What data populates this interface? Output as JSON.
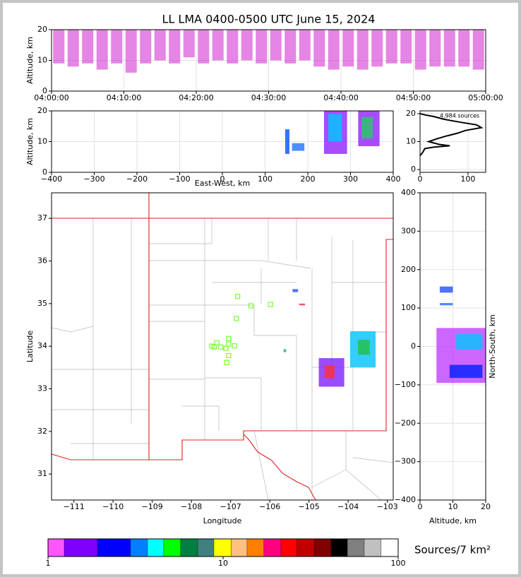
{
  "chart_data": [
    {
      "type": "range",
      "title": "LL LMA 0400-0500 UTC June 15, 2024",
      "y_label": "Altitude, km",
      "x": [
        "04:01:00",
        "04:03:00",
        "04:05:00",
        "04:07:00",
        "04:09:00",
        "04:11:00",
        "04:13:00",
        "04:15:00",
        "04:17:00",
        "04:19:00",
        "04:21:00",
        "04:23:00",
        "04:25:00",
        "04:27:00",
        "04:29:00",
        "04:31:00",
        "04:33:00",
        "04:35:00",
        "04:37:00",
        "04:39:00",
        "04:41:00",
        "04:43:00",
        "04:45:00",
        "04:47:00",
        "04:49:00",
        "04:51:00",
        "04:53:00",
        "04:55:00",
        "04:57:00",
        "04:59:00"
      ],
      "low": [
        9,
        8,
        9,
        7,
        9,
        6,
        9,
        10,
        9,
        11,
        9,
        10,
        9,
        10,
        9,
        10,
        9,
        10,
        8,
        7,
        8,
        7,
        8,
        9,
        9,
        7,
        8,
        8,
        8,
        7
      ],
      "high": [
        20,
        20,
        20,
        20,
        20,
        20,
        20,
        20,
        20,
        20,
        20,
        20,
        20,
        20,
        20,
        20,
        20,
        20,
        20,
        20,
        20,
        20,
        20,
        20,
        20,
        20,
        20,
        20,
        20,
        20
      ],
      "color": "#d020d0",
      "xlim": [
        "04:00:00",
        "05:00:00"
      ],
      "xticks": [
        "04:00:00",
        "04:10:00",
        "04:20:00",
        "04:30:00",
        "04:40:00",
        "04:50:00",
        "05:00:00"
      ],
      "ylim": [
        0,
        20
      ],
      "yticks": [
        0,
        10,
        20
      ],
      "grid": true
    },
    {
      "type": "blobs",
      "y_label": "Altitude, km",
      "x_label": "East-West, km",
      "blobs": [
        {
          "x": [
            147,
            157
          ],
          "y": [
            6,
            14
          ],
          "color": "#0050ff"
        },
        {
          "x": [
            163,
            192
          ],
          "y": [
            7,
            9.5
          ],
          "color": "#2070ff"
        },
        {
          "x": [
            238,
            292
          ],
          "y": [
            6,
            20
          ],
          "color": "#9020ff"
        },
        {
          "x": [
            248,
            280
          ],
          "y": [
            10,
            19
          ],
          "color": "#00c8ff"
        },
        {
          "x": [
            318,
            368
          ],
          "y": [
            8.5,
            20
          ],
          "color": "#9020ff"
        },
        {
          "x": [
            326,
            352
          ],
          "y": [
            11,
            18
          ],
          "color": "#20d060"
        }
      ],
      "xlim": [
        -400,
        400
      ],
      "xticks": [
        {
          "value": -400,
          "label": "−400"
        },
        {
          "value": -300,
          "label": "−300"
        },
        {
          "value": -200,
          "label": "−200"
        },
        {
          "value": -100,
          "label": "−100"
        },
        0,
        100,
        200,
        300,
        400
      ],
      "ylim": [
        0,
        20
      ],
      "yticks": [
        0,
        10,
        20
      ],
      "grid": true
    },
    {
      "type": "line",
      "text": "4,984 sources",
      "x": [
        0,
        5,
        10,
        28,
        62,
        40,
        18,
        35,
        55,
        78,
        95,
        128,
        118,
        82,
        50,
        28,
        12,
        0
      ],
      "y": [
        5,
        6,
        7.5,
        8,
        8.5,
        9,
        10,
        11,
        12,
        13,
        14,
        15,
        16,
        17,
        18,
        19,
        19.5,
        20
      ],
      "color": "#000000",
      "xlim": [
        0,
        137
      ],
      "xticks": [
        0,
        100
      ],
      "ylim": [
        -1,
        21
      ],
      "yticks": [
        0,
        10,
        20
      ],
      "grid": true
    },
    {
      "type": "map",
      "x_label": "Longitude",
      "y_label": "Latitude",
      "blobs": [
        {
          "x": [
            -105.42,
            -105.28
          ],
          "y": [
            35.27,
            35.34
          ],
          "color": "#2050ff"
        },
        {
          "x": [
            -105.25,
            -105.1
          ],
          "y": [
            34.96,
            35.0
          ],
          "color": "#ff2040"
        },
        {
          "x": [
            -105.65,
            -105.58
          ],
          "y": [
            33.86,
            33.93
          ],
          "color": "#20b060"
        },
        {
          "x": [
            -104.75,
            -104.1
          ],
          "y": [
            33.05,
            33.72
          ],
          "color": "#8020ff"
        },
        {
          "x": [
            -104.6,
            -104.35
          ],
          "y": [
            33.25,
            33.55
          ],
          "color": "#ff3030"
        },
        {
          "x": [
            -103.95,
            -103.3
          ],
          "y": [
            33.5,
            34.35
          ],
          "color": "#00c0ff"
        },
        {
          "x": [
            -103.75,
            -103.45
          ],
          "y": [
            33.8,
            34.15
          ],
          "color": "#20c040"
        }
      ],
      "stations": {
        "x": [
          -106.82,
          -106.48,
          -105.98,
          -106.85,
          -107.05,
          -107.35,
          -107.42,
          -107.25,
          -107.05,
          -107.12,
          -106.9,
          -107.05,
          -107.1,
          -107.48
        ],
        "y": [
          35.17,
          34.95,
          34.98,
          34.65,
          34.18,
          34.08,
          33.98,
          33.98,
          34.05,
          33.95,
          34.01,
          33.78,
          33.62,
          34.0
        ],
        "color": "#80ff40"
      },
      "xlim": [
        -111.57,
        -102.85
      ],
      "xticks": [
        {
          "value": -111,
          "label": "−111"
        },
        {
          "value": -110,
          "label": "−110"
        },
        {
          "value": -109,
          "label": "−109"
        },
        {
          "value": -108,
          "label": "−108"
        },
        {
          "value": -107,
          "label": "−107"
        },
        {
          "value": -106,
          "label": "−106"
        },
        {
          "value": -105,
          "label": "−105"
        },
        {
          "value": -104,
          "label": "−104"
        },
        {
          "value": -103,
          "label": "−103"
        }
      ],
      "ylim": [
        30.39,
        37.6
      ],
      "yticks": [
        31,
        32,
        33,
        34,
        35,
        36,
        37
      ]
    },
    {
      "type": "blobs",
      "x_label": "Altitude, km",
      "y_label": "North-South, km",
      "blobs": [
        {
          "x": [
            6,
            10
          ],
          "y": [
            140,
            156
          ],
          "color": "#2050ff"
        },
        {
          "x": [
            6,
            10
          ],
          "y": [
            107,
            113
          ],
          "color": "#2070ff"
        },
        {
          "x": [
            5,
            20
          ],
          "y": [
            -95,
            48
          ],
          "color": "#c040ff"
        },
        {
          "x": [
            9,
            19
          ],
          "y": [
            -82,
            -48
          ],
          "color": "#0020ff"
        },
        {
          "x": [
            11,
            19
          ],
          "y": [
            -8,
            32
          ],
          "color": "#00c8ff"
        }
      ],
      "xlim": [
        0,
        20
      ],
      "xticks": [
        0,
        10,
        20
      ],
      "ylim": [
        -400,
        400
      ],
      "yticks": [
        {
          "value": -400,
          "label": "−400"
        },
        {
          "value": -300,
          "label": "−300"
        },
        {
          "value": -200,
          "label": "−200"
        },
        {
          "value": -100,
          "label": "−100"
        },
        0,
        100,
        200,
        300,
        400
      ],
      "grid": true
    },
    {
      "type": "colorbar",
      "label": "Sources/7 km²",
      "bounds": [
        1,
        1.238,
        1.915,
        2.96,
        3.7,
        4.58,
        5.72,
        7.16,
        8.86,
        11.1,
        13.7,
        17.1,
        21.4,
        26.4,
        33.1,
        41.4,
        51.3,
        64.0,
        79.9,
        100
      ],
      "colors": [
        "#ff55ff",
        "#8000ff",
        "#0000ff",
        "#0080ff",
        "#00ffff",
        "#00ff00",
        "#008040",
        "#408080",
        "#ffff00",
        "#ffc080",
        "#ff8000",
        "#ff0080",
        "#ff0000",
        "#c00000",
        "#800000",
        "#000000",
        "#808080",
        "#c0c0c0",
        "#ffffff"
      ],
      "xlim": [
        1,
        100
      ],
      "xticks": [
        1,
        10,
        100
      ],
      "log": true
    }
  ]
}
